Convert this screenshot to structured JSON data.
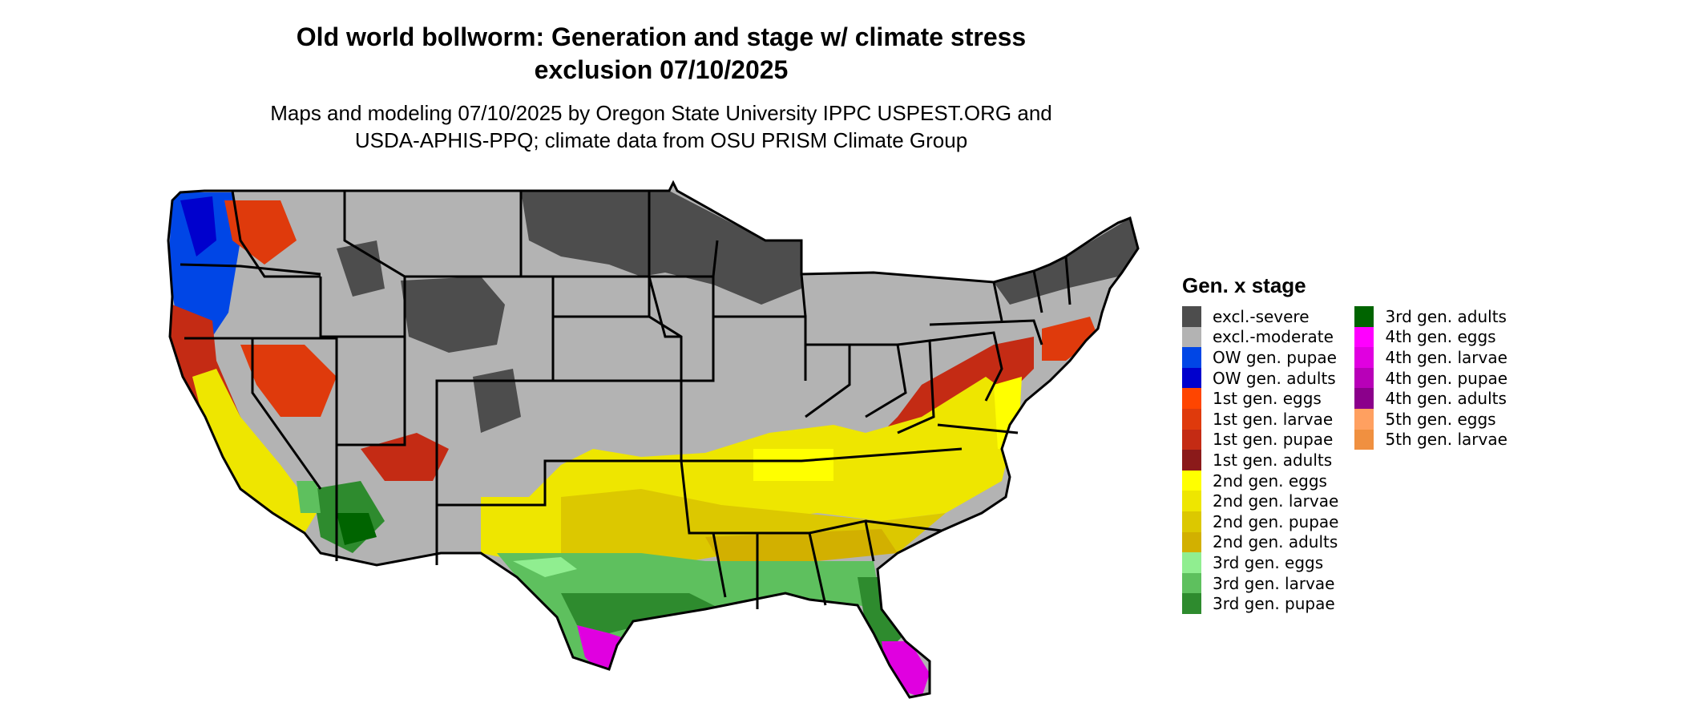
{
  "title_line1": "Old world bollworm: Generation and stage w/ climate stress",
  "title_line2": "exclusion 07/10/2025",
  "subtitle_line1": "Maps and modeling 07/10/2025 by Oregon State University IPPC USPEST.ORG and",
  "subtitle_line2": "USDA-APHIS-PPQ; climate data from OSU PRISM Climate Group",
  "legend": {
    "title": "Gen. x stage",
    "columns": [
      [
        {
          "label": "excl.-severe",
          "color": "#4d4d4d"
        },
        {
          "label": "excl.-moderate",
          "color": "#b3b3b3"
        },
        {
          "label": "OW gen. pupae",
          "color": "#0046e6"
        },
        {
          "label": "OW gen. adults",
          "color": "#0000cd"
        },
        {
          "label": "1st gen. eggs",
          "color": "#ff4500"
        },
        {
          "label": "1st gen. larvae",
          "color": "#df3a0c"
        },
        {
          "label": "1st gen. pupae",
          "color": "#c42b14"
        },
        {
          "label": "1st gen. adults",
          "color": "#8b1a1a"
        },
        {
          "label": "2nd gen. eggs",
          "color": "#ffff00"
        },
        {
          "label": "2nd gen. larvae",
          "color": "#eee600"
        },
        {
          "label": "2nd gen. pupae",
          "color": "#dcc800"
        },
        {
          "label": "2nd gen. adults",
          "color": "#d2b000"
        },
        {
          "label": "3rd gen. eggs",
          "color": "#90ee90"
        },
        {
          "label": "3rd gen. larvae",
          "color": "#5ec05e"
        },
        {
          "label": "3rd gen. pupae",
          "color": "#2e8b2e"
        }
      ],
      [
        {
          "label": "3rd gen. adults",
          "color": "#006400"
        },
        {
          "label": "4th gen. eggs",
          "color": "#ff00ff"
        },
        {
          "label": "4th gen. larvae",
          "color": "#e000e0"
        },
        {
          "label": "4th gen. pupae",
          "color": "#b800b8"
        },
        {
          "label": "4th gen. adults",
          "color": "#8b008b"
        },
        {
          "label": "5th gen. eggs",
          "color": "#ffa060"
        },
        {
          "label": "5th gen. larvae",
          "color": "#f09040"
        }
      ]
    ]
  }
}
